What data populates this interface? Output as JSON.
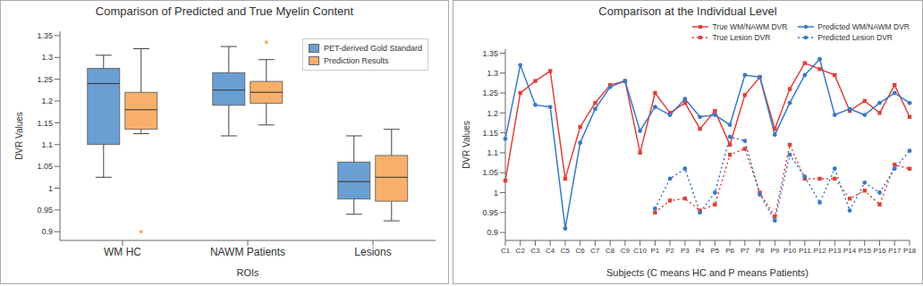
{
  "chart_data": [
    {
      "type": "box",
      "title": "Comparison of Predicted and True Myelin Content",
      "x_label": "ROIs",
      "y_label": "DVR Values",
      "categories": [
        "WM HC",
        "NAWM Patients",
        "Lesions"
      ],
      "series": [
        {
          "name": "PET-derived Gold Standard",
          "color": "#6a9fd3",
          "stats": [
            {
              "min": 1.025,
              "q1": 1.1,
              "median": 1.24,
              "q3": 1.275,
              "max": 1.305,
              "outliers": []
            },
            {
              "min": 1.12,
              "q1": 1.19,
              "median": 1.225,
              "q3": 1.265,
              "max": 1.325,
              "outliers": []
            },
            {
              "min": 0.94,
              "q1": 0.975,
              "median": 1.015,
              "q3": 1.06,
              "max": 1.12,
              "outliers": []
            }
          ]
        },
        {
          "name": "Prediction Results",
          "color": "#f7b06b",
          "stats": [
            {
              "min": 1.125,
              "q1": 1.135,
              "median": 1.18,
              "q3": 1.22,
              "max": 1.32,
              "outliers": [
                0.9
              ]
            },
            {
              "min": 1.145,
              "q1": 1.195,
              "median": 1.22,
              "q3": 1.245,
              "max": 1.295,
              "outliers": [
                1.335
              ]
            },
            {
              "min": 0.925,
              "q1": 0.97,
              "median": 1.025,
              "q3": 1.075,
              "max": 1.135,
              "outliers": []
            }
          ]
        }
      ],
      "ylim": [
        0.88,
        1.36
      ],
      "yticks": [
        0.9,
        0.95,
        1,
        1.05,
        1.1,
        1.15,
        1.2,
        1.25,
        1.3,
        1.35
      ],
      "legend": "upper right"
    },
    {
      "type": "line",
      "title": "Comparison at the Individual Level",
      "x_label": "Subjects (C means HC and P means Patients)",
      "y_label": "DVR Values",
      "categories": [
        "C1",
        "C2",
        "C3",
        "C4",
        "C5",
        "C6",
        "C7",
        "C8",
        "C9",
        "C10",
        "P1",
        "P2",
        "P3",
        "P4",
        "P5",
        "P6",
        "P7",
        "P8",
        "P9",
        "P10",
        "P11",
        "P12",
        "P13",
        "P14",
        "P15",
        "P16",
        "P17",
        "P18"
      ],
      "series": [
        {
          "name": "True WM/NAWM DVR",
          "color": "#e0403a",
          "marker": "square",
          "line_style": "solid",
          "values": [
            1.03,
            1.25,
            1.28,
            1.305,
            1.035,
            1.165,
            1.225,
            1.27,
            1.28,
            1.1,
            1.25,
            1.2,
            1.225,
            1.16,
            1.205,
            1.12,
            1.245,
            1.29,
            1.16,
            1.26,
            1.325,
            1.31,
            1.295,
            1.205,
            1.23,
            1.2,
            1.27,
            1.19
          ]
        },
        {
          "name": "Predicted WM/NAWM DVR",
          "color": "#3a78c9",
          "marker": "circle",
          "line_style": "solid",
          "values": [
            1.135,
            1.32,
            1.22,
            1.215,
            0.91,
            1.125,
            1.21,
            1.265,
            1.28,
            1.155,
            1.215,
            1.195,
            1.235,
            1.19,
            1.195,
            1.17,
            1.295,
            1.29,
            1.145,
            1.225,
            1.295,
            1.335,
            1.195,
            1.21,
            1.195,
            1.225,
            1.25,
            1.225
          ]
        },
        {
          "name": "True Lesion DVR",
          "color": "#e0403a",
          "marker": "square",
          "line_style": "dotted",
          "values": [
            null,
            null,
            null,
            null,
            null,
            null,
            null,
            null,
            null,
            null,
            0.95,
            0.98,
            0.985,
            0.955,
            0.97,
            1.095,
            1.11,
            1.0,
            0.94,
            1.12,
            1.035,
            1.035,
            1.035,
            0.985,
            1.005,
            0.97,
            1.07,
            1.06
          ]
        },
        {
          "name": "Predicted Lesion DVR",
          "color": "#3a78c9",
          "marker": "circle",
          "line_style": "dotted",
          "values": [
            null,
            null,
            null,
            null,
            null,
            null,
            null,
            null,
            null,
            null,
            0.96,
            1.035,
            1.06,
            0.95,
            1.0,
            1.14,
            1.13,
            0.995,
            0.93,
            1.095,
            1.04,
            0.975,
            1.06,
            0.955,
            1.025,
            1.0,
            1.06,
            1.105
          ]
        }
      ],
      "ylim": [
        0.88,
        1.36
      ],
      "yticks": [
        0.9,
        0.95,
        1,
        1.05,
        1.1,
        1.15,
        1.2,
        1.25,
        1.3,
        1.35
      ],
      "legend": "upper right"
    }
  ]
}
